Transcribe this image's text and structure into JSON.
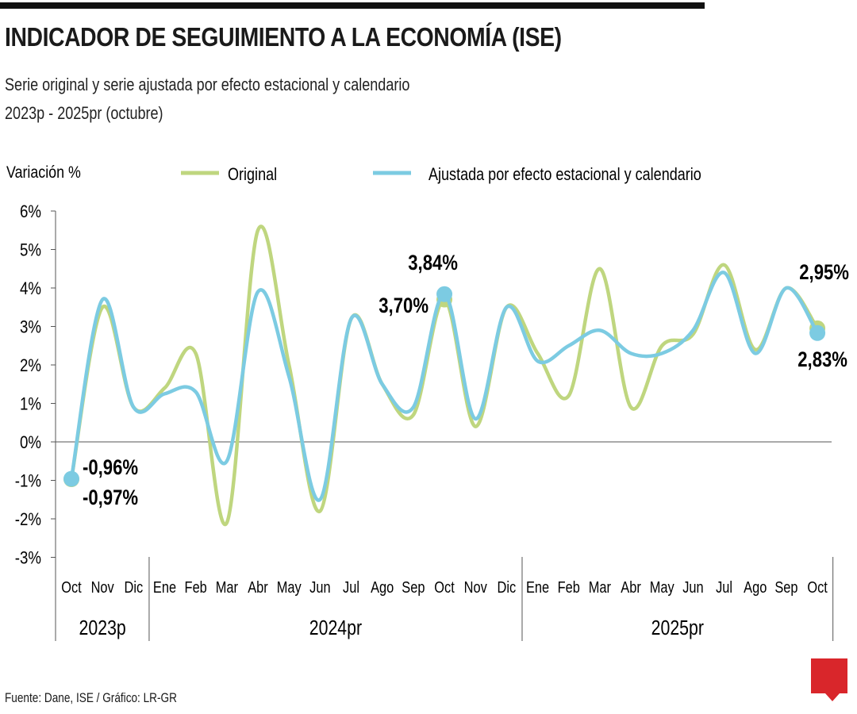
{
  "header": {
    "title": "INDICADOR DE SEGUIMIENTO A LA ECONOMÍA (ISE)",
    "subtitle_1": "Serie original y serie ajustada por efecto estacional y calendario",
    "subtitle_2": "2023p - 2025pr (octubre)"
  },
  "source": "Fuente: Dane, ISE / Gráfico: LR-GR",
  "logo": "LR",
  "chart_data": {
    "type": "line",
    "ylabel": "Variación %",
    "ylim": [
      -3,
      6
    ],
    "yticks": [
      "6%",
      "5%",
      "4%",
      "3%",
      "2%",
      "1%",
      "0%",
      "-1%",
      "-2%",
      "-3%"
    ],
    "categories": [
      "Oct",
      "Nov",
      "Dic",
      "Ene",
      "Feb",
      "Mar",
      "Abr",
      "May",
      "Jun",
      "Jul",
      "Ago",
      "Sep",
      "Oct",
      "Nov",
      "Dic",
      "Ene",
      "Feb",
      "Mar",
      "Abr",
      "May",
      "Jun",
      "Jul",
      "Ago",
      "Sep",
      "Oct"
    ],
    "year_groups": [
      {
        "label": "2023p",
        "months": 3
      },
      {
        "label": "2024pr",
        "months": 12
      },
      {
        "label": "2025pr",
        "months": 10
      }
    ],
    "legend_position": "top",
    "series": [
      {
        "name": "Original",
        "color": "#bfd67f",
        "values": [
          -0.97,
          3.5,
          0.9,
          1.4,
          2.3,
          -2.1,
          5.5,
          2.0,
          -1.8,
          3.2,
          1.5,
          0.7,
          3.7,
          0.4,
          3.5,
          2.3,
          1.2,
          4.5,
          0.9,
          2.5,
          2.8,
          4.6,
          2.4,
          4.0,
          2.95
        ]
      },
      {
        "name": "Ajustada por efecto estacional y calendario",
        "color": "#7ccbe2",
        "values": [
          -0.96,
          3.7,
          0.9,
          1.25,
          1.3,
          -0.5,
          3.9,
          1.7,
          -1.5,
          3.2,
          1.5,
          0.9,
          3.84,
          0.6,
          3.5,
          2.1,
          2.5,
          2.9,
          2.3,
          2.3,
          2.9,
          4.4,
          2.3,
          4.0,
          2.83
        ]
      }
    ],
    "annotations": [
      "-0,96%",
      "-0,97%",
      "3,84%",
      "3,70%",
      "2,95%",
      "2,83%"
    ],
    "grid": false
  }
}
